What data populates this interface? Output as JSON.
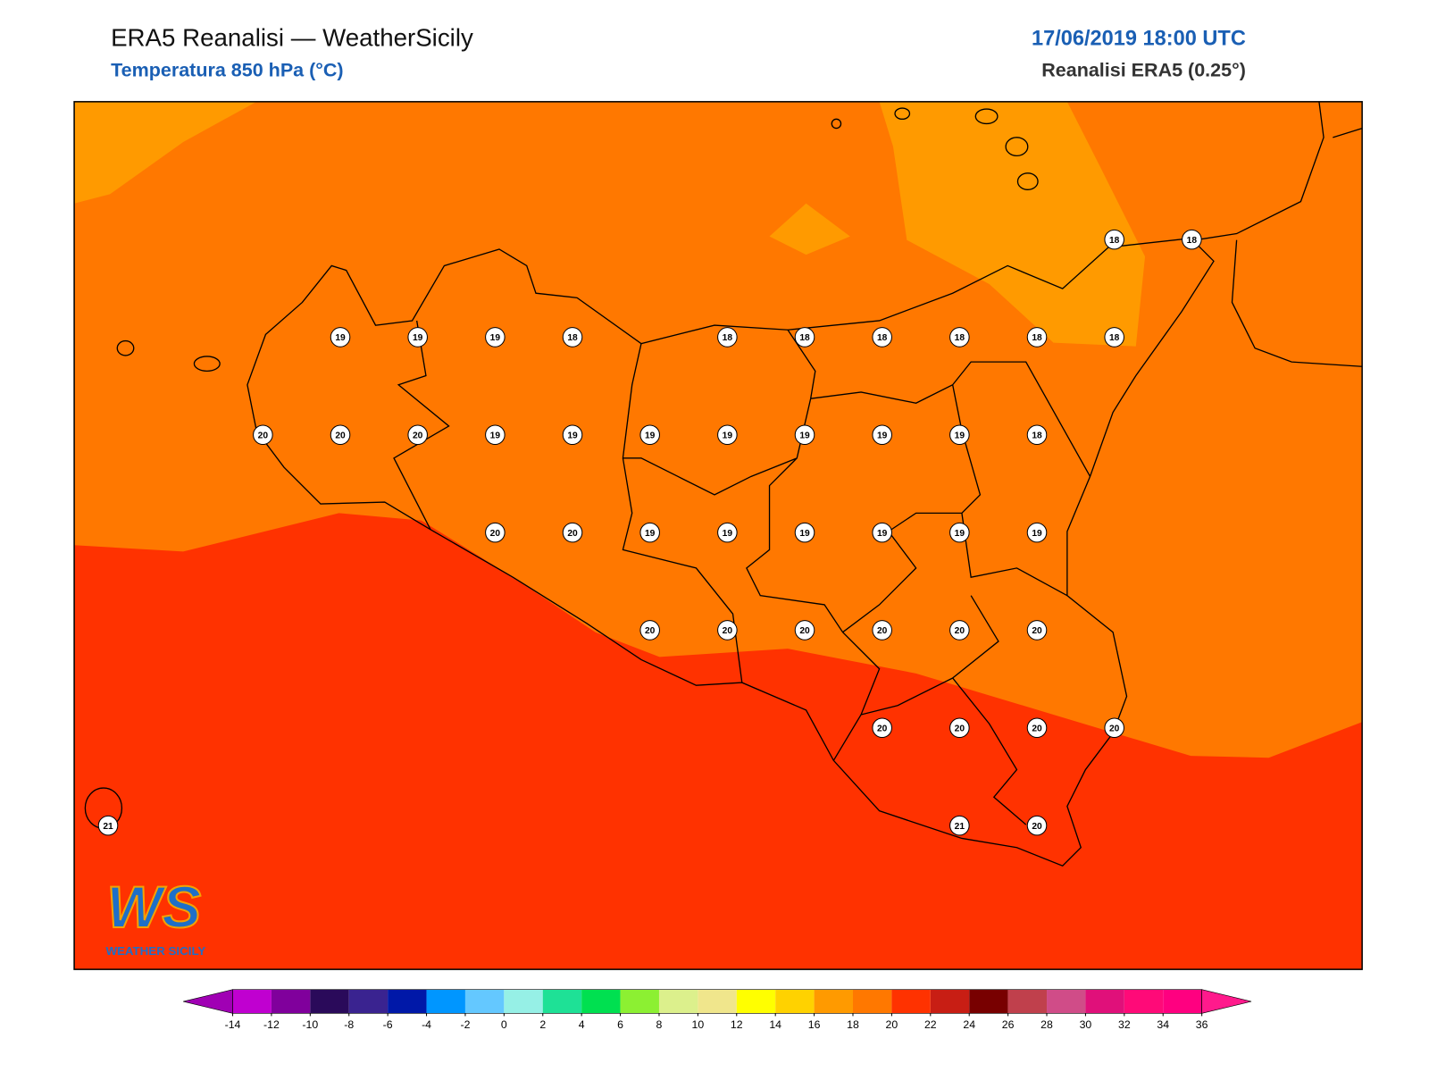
{
  "header": {
    "title": "ERA5 Reanalisi — WeatherSicily",
    "subtitle": "Temperatura 850 hPa (°C)",
    "datetime": "17/06/2019 18:00 UTC",
    "source": "Reanalisi ERA5 (0.25°)"
  },
  "map": {
    "station_values": [
      18,
      18,
      19,
      19,
      19,
      18,
      18,
      18,
      18,
      18,
      18,
      18,
      20,
      20,
      20,
      19,
      19,
      19,
      19,
      19,
      19,
      19,
      18,
      20,
      20,
      19,
      19,
      19,
      19,
      19,
      19,
      20,
      20,
      20,
      20,
      20,
      20,
      20,
      20,
      20,
      20,
      21,
      21,
      20
    ]
  },
  "logo": {
    "mark": "WS",
    "name": "WEATHER SICILY"
  },
  "colorbar": {
    "ticks": [
      -14,
      -12,
      -10,
      -8,
      -6,
      -4,
      -2,
      0,
      2,
      4,
      6,
      8,
      10,
      12,
      14,
      16,
      18,
      20,
      22,
      24,
      26,
      28,
      30,
      32,
      34,
      36
    ],
    "colors": [
      "#a000b4",
      "#c000d0",
      "#80009c",
      "#2a0a5a",
      "#3a2390",
      "#0018a8",
      "#0096ff",
      "#64c8ff",
      "#96f0e6",
      "#1ee196",
      "#00e050",
      "#8cf032",
      "#dcf08c",
      "#f0e68c",
      "#ffff00",
      "#ffd200",
      "#ff9a00",
      "#ff7800",
      "#ff3200",
      "#c81e14",
      "#780000",
      "#c0404c",
      "#d04c88",
      "#e0107a",
      "#ff0a78",
      "#ff0080",
      "#ff1a8c"
    ]
  }
}
